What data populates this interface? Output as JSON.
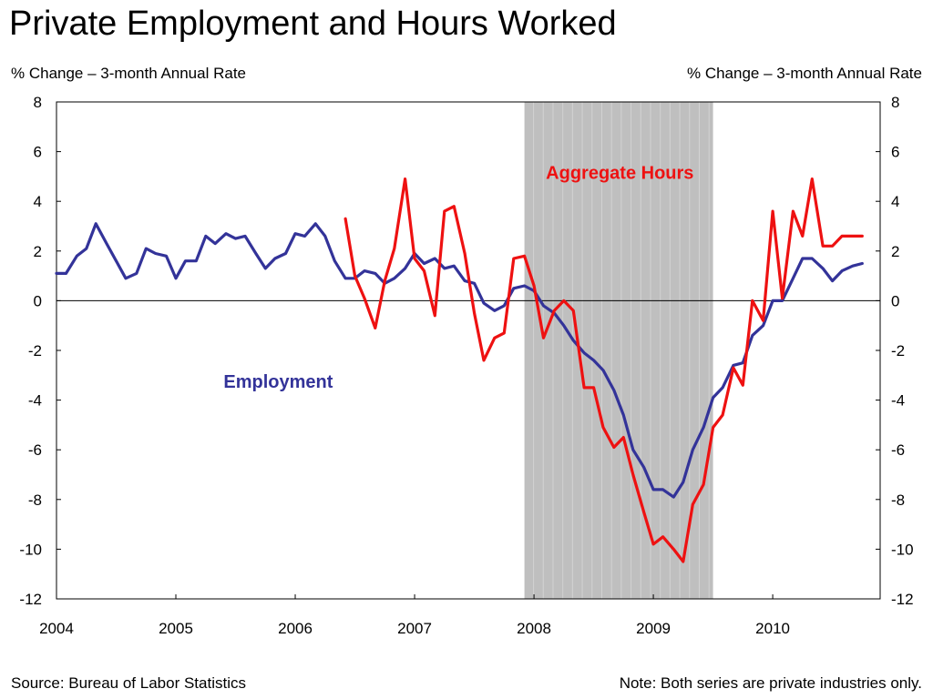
{
  "title": "Private Employment and Hours Worked",
  "left_axis_unit": "% Change – 3-month Annual Rate",
  "right_axis_unit": "% Change – 3-month Annual Rate",
  "source": "Source:  Bureau of Labor Statistics",
  "note": "Note:  Both series are private industries only.",
  "colors": {
    "employment": "#333399",
    "aggregate_hours": "#ee1111",
    "recession": "#bfbfbf"
  },
  "chart_data": {
    "type": "line",
    "x_unit": "year (decimal)",
    "xlim": [
      2004,
      2010.9
    ],
    "ylim": [
      -12,
      8
    ],
    "yticks": [
      8,
      6,
      4,
      2,
      0,
      -2,
      -4,
      -6,
      -8,
      -10,
      -12
    ],
    "ytick_labels": [
      "8",
      "6",
      "4",
      "2",
      "0",
      "-2",
      "-4",
      "-6",
      "-8",
      "-10",
      "-12"
    ],
    "xticks": [
      2004,
      2005,
      2006,
      2007,
      2008,
      2009,
      2010
    ],
    "xtick_labels": [
      "2004",
      "2005",
      "2006",
      "2007",
      "2008",
      "2009",
      "2010"
    ],
    "recession_shading": {
      "start": 2007.92,
      "end": 2009.5
    },
    "zero_line": true,
    "series": [
      {
        "name": "Employment",
        "label_color": "#333399",
        "points": [
          [
            2004.0,
            1.1
          ],
          [
            2004.08,
            1.1
          ],
          [
            2004.17,
            1.8
          ],
          [
            2004.25,
            2.1
          ],
          [
            2004.33,
            3.1
          ],
          [
            2004.42,
            2.3
          ],
          [
            2004.5,
            1.6
          ],
          [
            2004.58,
            0.9
          ],
          [
            2004.67,
            1.1
          ],
          [
            2004.75,
            2.1
          ],
          [
            2004.83,
            1.9
          ],
          [
            2004.92,
            1.8
          ],
          [
            2005.0,
            0.9
          ],
          [
            2005.08,
            1.6
          ],
          [
            2005.17,
            1.6
          ],
          [
            2005.25,
            2.6
          ],
          [
            2005.33,
            2.3
          ],
          [
            2005.42,
            2.7
          ],
          [
            2005.5,
            2.5
          ],
          [
            2005.58,
            2.6
          ],
          [
            2005.67,
            1.9
          ],
          [
            2005.75,
            1.3
          ],
          [
            2005.83,
            1.7
          ],
          [
            2005.92,
            1.9
          ],
          [
            2006.0,
            2.7
          ],
          [
            2006.08,
            2.6
          ],
          [
            2006.17,
            3.1
          ],
          [
            2006.25,
            2.6
          ],
          [
            2006.33,
            1.6
          ],
          [
            2006.42,
            0.9
          ],
          [
            2006.5,
            0.9
          ],
          [
            2006.58,
            1.2
          ],
          [
            2006.67,
            1.1
          ],
          [
            2006.75,
            0.7
          ],
          [
            2006.83,
            0.9
          ],
          [
            2006.92,
            1.3
          ],
          [
            2007.0,
            1.9
          ],
          [
            2007.08,
            1.5
          ],
          [
            2007.17,
            1.7
          ],
          [
            2007.25,
            1.3
          ],
          [
            2007.33,
            1.4
          ],
          [
            2007.42,
            0.8
          ],
          [
            2007.5,
            0.7
          ],
          [
            2007.58,
            -0.1
          ],
          [
            2007.67,
            -0.4
          ],
          [
            2007.75,
            -0.2
          ],
          [
            2007.83,
            0.5
          ],
          [
            2007.92,
            0.6
          ],
          [
            2008.0,
            0.4
          ],
          [
            2008.08,
            -0.2
          ],
          [
            2008.17,
            -0.5
          ],
          [
            2008.25,
            -1.0
          ],
          [
            2008.33,
            -1.6
          ],
          [
            2008.42,
            -2.1
          ],
          [
            2008.5,
            -2.4
          ],
          [
            2008.58,
            -2.8
          ],
          [
            2008.67,
            -3.6
          ],
          [
            2008.75,
            -4.6
          ],
          [
            2008.83,
            -6.0
          ],
          [
            2008.92,
            -6.7
          ],
          [
            2009.0,
            -7.6
          ],
          [
            2009.08,
            -7.6
          ],
          [
            2009.17,
            -7.9
          ],
          [
            2009.25,
            -7.3
          ],
          [
            2009.33,
            -6.0
          ],
          [
            2009.42,
            -5.1
          ],
          [
            2009.5,
            -3.9
          ],
          [
            2009.58,
            -3.5
          ],
          [
            2009.67,
            -2.6
          ],
          [
            2009.75,
            -2.5
          ],
          [
            2009.83,
            -1.4
          ],
          [
            2009.92,
            -1.0
          ],
          [
            2010.0,
            0.0
          ],
          [
            2010.08,
            0.0
          ],
          [
            2010.17,
            0.9
          ],
          [
            2010.25,
            1.7
          ],
          [
            2010.33,
            1.7
          ],
          [
            2010.42,
            1.3
          ],
          [
            2010.5,
            0.8
          ],
          [
            2010.58,
            1.2
          ],
          [
            2010.67,
            1.4
          ],
          [
            2010.75,
            1.5
          ]
        ]
      },
      {
        "name": "Aggregate Hours",
        "label_color": "#ee1111",
        "points": [
          [
            2006.42,
            3.3
          ],
          [
            2006.5,
            1.0
          ],
          [
            2006.58,
            0.1
          ],
          [
            2006.67,
            -1.1
          ],
          [
            2006.75,
            0.8
          ],
          [
            2006.83,
            2.1
          ],
          [
            2006.92,
            4.9
          ],
          [
            2007.0,
            1.7
          ],
          [
            2007.08,
            1.2
          ],
          [
            2007.17,
            -0.6
          ],
          [
            2007.25,
            3.6
          ],
          [
            2007.33,
            3.8
          ],
          [
            2007.42,
            1.9
          ],
          [
            2007.5,
            -0.5
          ],
          [
            2007.58,
            -2.4
          ],
          [
            2007.67,
            -1.5
          ],
          [
            2007.75,
            -1.3
          ],
          [
            2007.83,
            1.7
          ],
          [
            2007.92,
            1.8
          ],
          [
            2008.0,
            0.6
          ],
          [
            2008.08,
            -1.5
          ],
          [
            2008.17,
            -0.4
          ],
          [
            2008.25,
            0.0
          ],
          [
            2008.33,
            -0.4
          ],
          [
            2008.42,
            -3.5
          ],
          [
            2008.5,
            -3.5
          ],
          [
            2008.58,
            -5.1
          ],
          [
            2008.67,
            -5.9
          ],
          [
            2008.75,
            -5.5
          ],
          [
            2008.83,
            -7.0
          ],
          [
            2008.92,
            -8.5
          ],
          [
            2009.0,
            -9.8
          ],
          [
            2009.08,
            -9.5
          ],
          [
            2009.17,
            -10.0
          ],
          [
            2009.25,
            -10.5
          ],
          [
            2009.33,
            -8.2
          ],
          [
            2009.42,
            -7.4
          ],
          [
            2009.5,
            -5.1
          ],
          [
            2009.58,
            -4.6
          ],
          [
            2009.67,
            -2.7
          ],
          [
            2009.75,
            -3.4
          ],
          [
            2009.83,
            0.0
          ],
          [
            2009.92,
            -0.8
          ],
          [
            2010.0,
            3.6
          ],
          [
            2010.08,
            0.1
          ],
          [
            2010.17,
            3.6
          ],
          [
            2010.25,
            2.6
          ],
          [
            2010.33,
            4.9
          ],
          [
            2010.42,
            2.2
          ],
          [
            2010.5,
            2.2
          ],
          [
            2010.58,
            2.6
          ],
          [
            2010.67,
            2.6
          ],
          [
            2010.75,
            2.6
          ]
        ]
      }
    ]
  }
}
